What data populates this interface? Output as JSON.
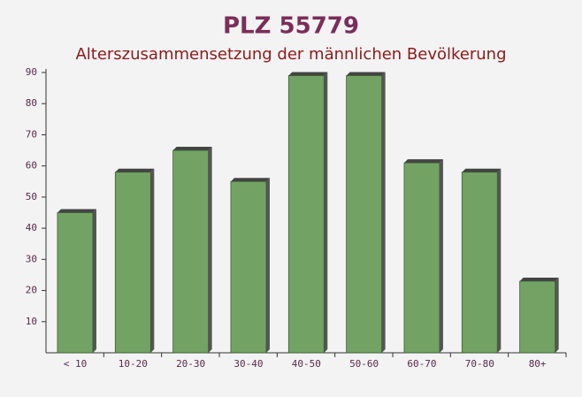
{
  "chart_data": {
    "type": "bar",
    "title": "PLZ 55779",
    "subtitle": "Alterszusammensetzung der männlichen Bevölkerung",
    "categories": [
      "< 10",
      "10-20",
      "20-30",
      "30-40",
      "40-50",
      "50-60",
      "60-70",
      "70-80",
      "80+"
    ],
    "values": [
      45,
      58,
      65,
      55,
      89,
      89,
      61,
      58,
      23
    ],
    "color": "#6a9e5c",
    "ylim": [
      0,
      90
    ],
    "yticks": [
      10,
      20,
      30,
      40,
      50,
      60,
      70,
      80,
      90
    ],
    "grid": false
  }
}
